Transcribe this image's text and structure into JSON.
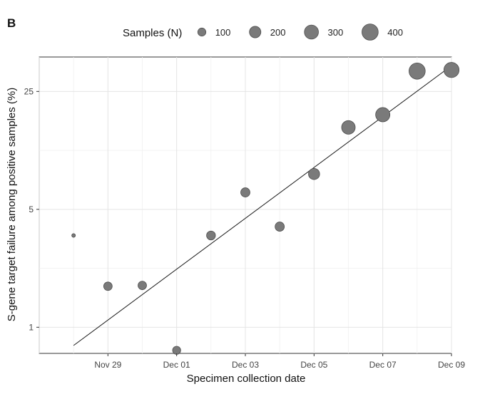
{
  "panel_label": "B",
  "chart_data": {
    "type": "scatter",
    "title": "",
    "xlabel": "Specimen collection date",
    "ylabel": "S-gene target failure among positive samples (%)",
    "x_scale": "date",
    "y_scale": "log",
    "xlim": [
      "2020-11-27",
      "2020-12-09"
    ],
    "ylim": [
      0.7,
      40
    ],
    "x_ticks": [
      {
        "date": "2020-11-29",
        "label": "Nov 29"
      },
      {
        "date": "2020-12-01",
        "label": "Dec 01"
      },
      {
        "date": "2020-12-03",
        "label": "Dec 03"
      },
      {
        "date": "2020-12-05",
        "label": "Dec 05"
      },
      {
        "date": "2020-12-07",
        "label": "Dec 07"
      },
      {
        "date": "2020-12-09",
        "label": "Dec 09"
      }
    ],
    "y_ticks": [
      {
        "value": 1,
        "label": "1"
      },
      {
        "value": 5,
        "label": "5"
      },
      {
        "value": 25,
        "label": "25"
      }
    ],
    "grid": true,
    "legend": {
      "title": "Samples (N)",
      "placement": "top",
      "entries": [
        {
          "label": "100",
          "n": 100
        },
        {
          "label": "200",
          "n": 200
        },
        {
          "label": "300",
          "n": 300
        },
        {
          "label": "400",
          "n": 400
        }
      ]
    },
    "point_color": "#7a7a7a",
    "point_edge_color": "#4d4d4d",
    "line_color": "#1a1a1a",
    "series": [
      {
        "points": [
          {
            "date": "2020-11-28",
            "y": 3.5,
            "n": 20
          },
          {
            "date": "2020-11-29",
            "y": 1.75,
            "n": 110
          },
          {
            "date": "2020-11-30",
            "y": 1.77,
            "n": 110
          },
          {
            "date": "2020-12-01",
            "y": 0.73,
            "n": 100
          },
          {
            "date": "2020-12-02",
            "y": 3.5,
            "n": 120
          },
          {
            "date": "2020-12-03",
            "y": 6.3,
            "n": 130
          },
          {
            "date": "2020-12-04",
            "y": 3.95,
            "n": 130
          },
          {
            "date": "2020-12-05",
            "y": 8.1,
            "n": 190
          },
          {
            "date": "2020-12-06",
            "y": 15.3,
            "n": 280
          },
          {
            "date": "2020-12-07",
            "y": 18.2,
            "n": 310
          },
          {
            "date": "2020-12-08",
            "y": 33.0,
            "n": 400
          },
          {
            "date": "2020-12-09",
            "y": 33.5,
            "n": 350
          }
        ]
      }
    ],
    "fit_line": [
      {
        "date": "2020-11-28",
        "y": 0.78
      },
      {
        "date": "2020-12-09",
        "y": 35.5
      }
    ]
  }
}
